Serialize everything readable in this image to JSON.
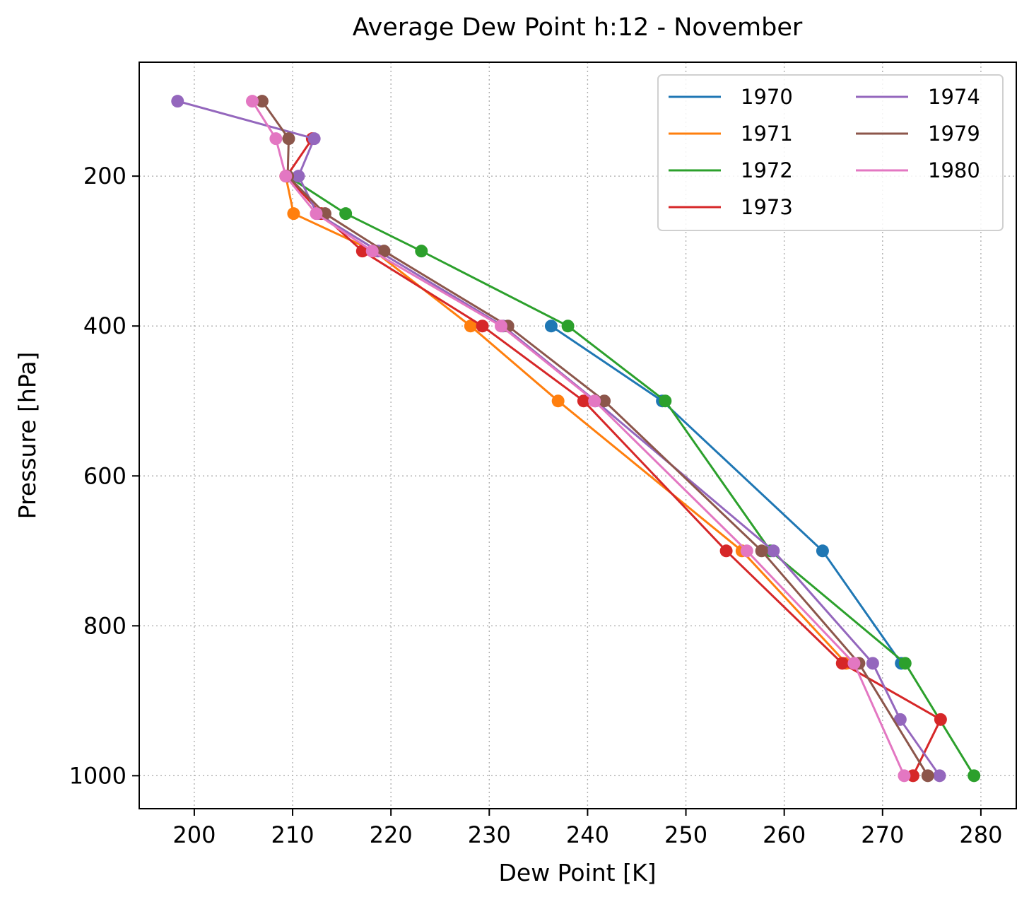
{
  "chart_data": {
    "type": "line",
    "title": "Average Dew Point h:12 - November",
    "xlabel": "Dew Point [K]",
    "ylabel": "Pressure [hPa]",
    "xlim": [
      194.4,
      283.6
    ],
    "ylim": [
      1044,
      48
    ],
    "y_inverted": true,
    "xticks": [
      200,
      210,
      220,
      230,
      240,
      250,
      260,
      270,
      280
    ],
    "yticks": [
      200,
      400,
      600,
      800,
      1000
    ],
    "grid": true,
    "legend": {
      "placement": "top-right",
      "columns": 2
    },
    "series": [
      {
        "name": "1970",
        "color": "#1f77b4",
        "points": [
          [
            236.3,
            400
          ],
          [
            247.6,
            500
          ],
          [
            263.9,
            700
          ],
          [
            271.9,
            850
          ]
        ]
      },
      {
        "name": "1971",
        "color": "#ff7f0e",
        "points": [
          [
            209.3,
            200
          ],
          [
            210.1,
            250
          ],
          [
            218.3,
            300
          ],
          [
            228.1,
            400
          ],
          [
            237.0,
            500
          ],
          [
            255.7,
            700
          ],
          [
            266.3,
            850
          ]
        ]
      },
      {
        "name": "1972",
        "color": "#2ca02c",
        "points": [
          [
            209.5,
            200
          ],
          [
            215.4,
            250
          ],
          [
            223.1,
            300
          ],
          [
            238.0,
            400
          ],
          [
            247.9,
            500
          ],
          [
            258.6,
            700
          ],
          [
            272.3,
            850
          ],
          [
            279.3,
            1000
          ]
        ]
      },
      {
        "name": "1973",
        "color": "#d62728",
        "points": [
          [
            212.0,
            150
          ],
          [
            209.4,
            200
          ],
          [
            212.9,
            250
          ],
          [
            217.1,
            300
          ],
          [
            229.3,
            400
          ],
          [
            239.6,
            500
          ],
          [
            254.1,
            700
          ],
          [
            265.9,
            850
          ],
          [
            275.9,
            925
          ],
          [
            273.1,
            1000
          ]
        ]
      },
      {
        "name": "1974",
        "color": "#9467bd",
        "points": [
          [
            198.3,
            100
          ],
          [
            212.2,
            150
          ],
          [
            210.6,
            200
          ],
          [
            212.5,
            250
          ],
          [
            218.7,
            300
          ],
          [
            231.4,
            400
          ],
          [
            240.8,
            500
          ],
          [
            258.9,
            700
          ],
          [
            269.0,
            850
          ],
          [
            271.8,
            925
          ],
          [
            275.8,
            1000
          ]
        ]
      },
      {
        "name": "1979",
        "color": "#8c564b",
        "points": [
          [
            206.9,
            100
          ],
          [
            209.6,
            150
          ],
          [
            209.5,
            200
          ],
          [
            213.3,
            250
          ],
          [
            219.3,
            300
          ],
          [
            231.9,
            400
          ],
          [
            241.7,
            500
          ],
          [
            257.7,
            700
          ],
          [
            267.6,
            850
          ],
          [
            274.6,
            1000
          ]
        ]
      },
      {
        "name": "1980",
        "color": "#e377c2",
        "points": [
          [
            205.9,
            100
          ],
          [
            208.3,
            150
          ],
          [
            209.3,
            200
          ],
          [
            212.4,
            250
          ],
          [
            218.1,
            300
          ],
          [
            231.2,
            400
          ],
          [
            240.7,
            500
          ],
          [
            256.2,
            700
          ],
          [
            267.1,
            850
          ],
          [
            272.2,
            1000
          ]
        ]
      }
    ]
  }
}
